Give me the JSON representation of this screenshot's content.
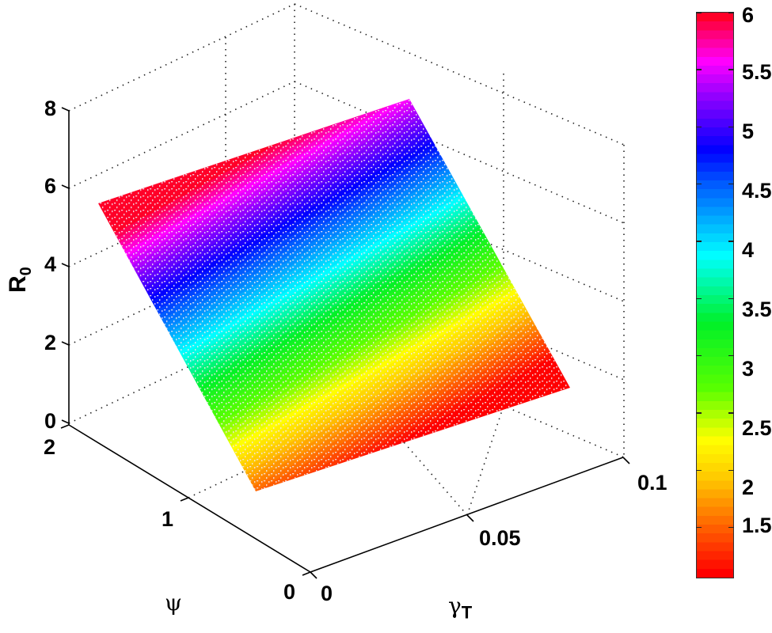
{
  "chart_data": {
    "type": "surface3d",
    "title": "",
    "xlabel": "γ_T",
    "ylabel": "ψ",
    "zlabel": "R_0",
    "xlim": [
      0,
      0.1
    ],
    "ylim": [
      0,
      2
    ],
    "zlim": [
      0,
      8
    ],
    "x_ticks": [
      "0",
      "0.05",
      "0.1"
    ],
    "y_ticks": [
      "0",
      "1",
      "2"
    ],
    "z_ticks": [
      "0",
      "2",
      "4",
      "6",
      "8"
    ],
    "grid": true,
    "colormap": "hsv",
    "colorbar": {
      "range": [
        1.05,
        6
      ],
      "ticks": [
        "1.5",
        "2",
        "2.5",
        "3",
        "3.5",
        "4",
        "4.5",
        "5",
        "5.5",
        "6"
      ],
      "position": "right"
    },
    "surface_description": "Nearly planar surface; R_0 increases approximately linearly with ψ and is almost independent of γ_T.",
    "x": [
      0,
      0.025,
      0.05,
      0.075,
      0.1
    ],
    "y": [
      0.4,
      0.8,
      1.2,
      1.6,
      2.0
    ],
    "z": [
      [
        1.05,
        1.05,
        1.05,
        1.05,
        1.05
      ],
      [
        2.3,
        2.3,
        2.3,
        2.3,
        2.3
      ],
      [
        3.5,
        3.5,
        3.5,
        3.5,
        3.5
      ],
      [
        4.75,
        4.75,
        4.75,
        4.75,
        4.75
      ],
      [
        6.0,
        6.0,
        6.0,
        6.0,
        6.0
      ]
    ]
  },
  "labels": {
    "z_axis": "R",
    "z_axis_sub": "0",
    "y_axis": "ψ",
    "x_axis": "γ",
    "x_axis_sub": "T"
  },
  "ticks": {
    "z": [
      "8",
      "6",
      "4",
      "2",
      "0"
    ],
    "psi": [
      "2",
      "1",
      "0"
    ],
    "gamma": [
      "0",
      "0.05",
      "0.1"
    ],
    "colorbar": [
      "6",
      "5.5",
      "5",
      "4.5",
      "4",
      "3.5",
      "3",
      "2.5",
      "2",
      "1.5"
    ]
  }
}
